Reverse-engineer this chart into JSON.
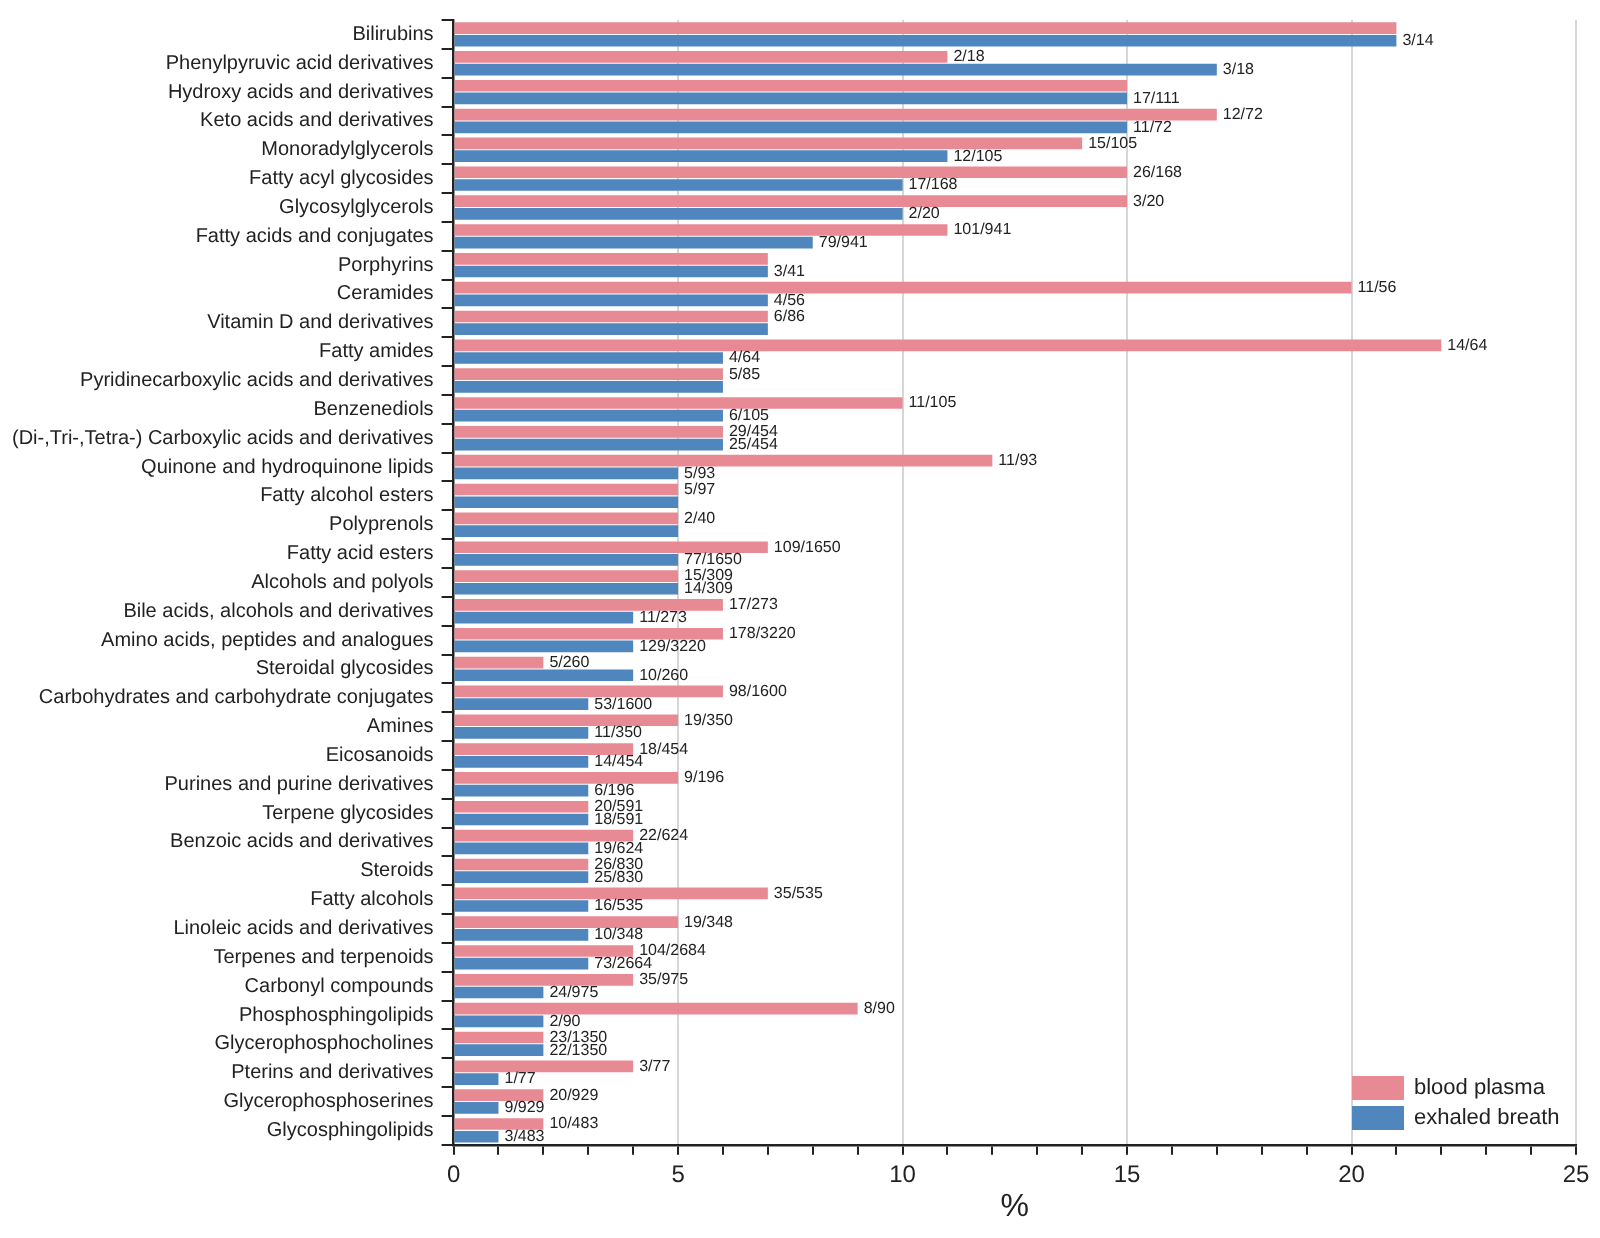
{
  "chart_data": {
    "type": "bar",
    "orientation": "horizontal",
    "xlabel": "%",
    "categories": [
      "Bilirubins",
      "Phenylpyruvic acid derivatives",
      "Hydroxy acids and derivatives",
      "Keto acids and derivatives",
      "Monoradylglycerols",
      "Fatty acyl glycosides",
      "Glycosylglycerols",
      "Fatty acids and conjugates",
      "Porphyrins",
      "Ceramides",
      "Vitamin D and derivatives",
      "Fatty amides",
      "Pyridinecarboxylic acids and derivatives",
      "Benzenediols",
      "(Di-,Tri-,Tetra-) Carboxylic acids and derivatives",
      "Quinone and hydroquinone lipids",
      "Fatty alcohol esters",
      "Polyprenols",
      "Fatty acid esters",
      "Alcohols and polyols",
      "Bile acids, alcohols and derivatives",
      "Amino acids, peptides and analogues",
      "Steroidal glycosides",
      "Carbohydrates and carbohydrate conjugates",
      "Amines",
      "Eicosanoids",
      "Purines and purine derivatives",
      "Terpene glycosides",
      "Benzoic acids and derivatives",
      "Steroids",
      "Fatty alcohols",
      "Linoleic acids and derivatives",
      "Terpenes and terpenoids",
      "Carbonyl compounds",
      "Phosphosphingolipids",
      "Glycerophosphocholines",
      "Pterins and derivatives",
      "Glycerophosphoserines",
      "Glycosphingolipids"
    ],
    "series": [
      {
        "name": "blood plasma",
        "color": "#e88a94",
        "values": [
          21,
          11,
          15,
          17,
          14,
          15,
          15,
          11,
          7,
          20,
          7,
          22,
          6,
          10,
          6,
          12,
          5,
          5,
          7,
          5,
          6,
          6,
          2,
          6,
          5,
          4,
          5,
          3,
          4,
          3,
          7,
          5,
          4,
          4,
          9,
          2,
          4,
          2,
          2
        ],
        "value_labels": [
          null,
          "2/18",
          null,
          "12/72",
          "15/105",
          "26/168",
          "3/20",
          "101/941",
          null,
          "11/56",
          "6/86",
          "14/64",
          "5/85",
          "11/105",
          "29/454",
          "11/93",
          "5/97",
          "2/40",
          "109/1650",
          "15/309",
          "17/273",
          "178/3220",
          "5/260",
          "98/1600",
          "19/350",
          "18/454",
          "9/196",
          "20/591",
          "22/624",
          "26/830",
          "35/535",
          "19/348",
          "104/2684",
          "35/975",
          "8/90",
          "23/1350",
          "3/77",
          "20/929",
          "10/483"
        ]
      },
      {
        "name": "exhaled breath",
        "color": "#4f86bd",
        "values": [
          21,
          17,
          15,
          15,
          11,
          10,
          10,
          8,
          7,
          7,
          7,
          6,
          6,
          6,
          6,
          5,
          5,
          5,
          5,
          5,
          4,
          4,
          4,
          3,
          3,
          3,
          3,
          3,
          3,
          3,
          3,
          3,
          3,
          2,
          2,
          2,
          1,
          1,
          1
        ],
        "value_labels": [
          "3/14",
          "3/18",
          "17/111",
          "11/72",
          "12/105",
          "17/168",
          "2/20",
          "79/941",
          "3/41",
          "4/56",
          null,
          "4/64",
          null,
          "6/105",
          "25/454",
          "5/93",
          null,
          null,
          "77/1650",
          "14/309",
          "11/273",
          "129/3220",
          "10/260",
          "53/1600",
          "11/350",
          "14/454",
          "6/196",
          "18/591",
          "19/624",
          "25/830",
          "16/535",
          "10/348",
          "73/2664",
          "24/975",
          "2/90",
          "22/1350",
          "1/77",
          "9/929",
          "3/483"
        ]
      }
    ],
    "xlim": [
      0,
      25
    ],
    "xticks": [
      0,
      {
        "value": 1,
        "label": null
      },
      {
        "value": 2,
        "label": null
      },
      {
        "value": 3,
        "label": null
      },
      {
        "value": 4,
        "label": null
      },
      5,
      {
        "value": 6,
        "label": null
      },
      {
        "value": 7,
        "label": null
      },
      {
        "value": 8,
        "label": null
      },
      {
        "value": 9,
        "label": null
      },
      10,
      {
        "value": 11,
        "label": null
      },
      {
        "value": 12,
        "label": null
      },
      {
        "value": 13,
        "label": null
      },
      {
        "value": 14,
        "label": null
      },
      15,
      {
        "value": 16,
        "label": null
      },
      {
        "value": 17,
        "label": null
      },
      {
        "value": 18,
        "label": null
      },
      {
        "value": 19,
        "label": null
      },
      20,
      {
        "value": 21,
        "label": null
      },
      {
        "value": 22,
        "label": null
      },
      {
        "value": 23,
        "label": null
      },
      {
        "value": 24,
        "label": null
      },
      25
    ],
    "grid": "x",
    "legend": "bottom right"
  }
}
